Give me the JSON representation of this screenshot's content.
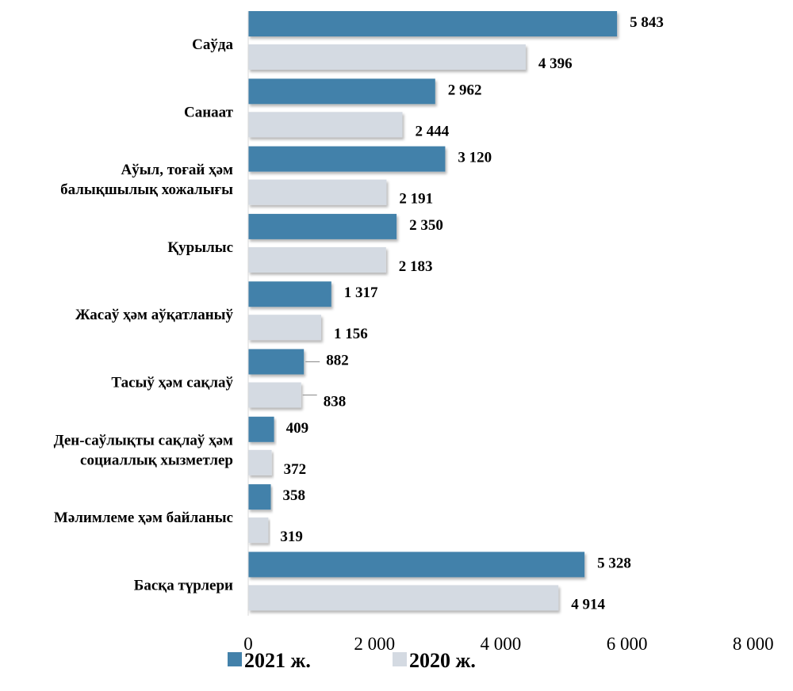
{
  "chart_data": {
    "type": "bar",
    "orientation": "horizontal",
    "categories": [
      [
        "Саўда"
      ],
      [
        "Санаат"
      ],
      [
        "Аўыл, тоғай ҳәм",
        "балықшылық хожалығы"
      ],
      [
        "Қурылыс"
      ],
      [
        "Жасаў ҳәм аўқатланыў"
      ],
      [
        "Тасыў ҳәм сақлаў"
      ],
      [
        "Ден-саўлықты сақлаў ҳәм",
        "социаллық хызметлер"
      ],
      [
        "Мәлимлеме ҳәм байланыс"
      ],
      [
        "Басқа түрлери"
      ]
    ],
    "series": [
      {
        "name": "2021 ж.",
        "color": "#4381aa",
        "values": [
          5843,
          2962,
          3120,
          2350,
          1317,
          882,
          409,
          358,
          5328
        ],
        "labels": [
          "5 843",
          "2 962",
          "3 120",
          "2 350",
          "1 317",
          "882",
          "409",
          "358",
          "5 328"
        ]
      },
      {
        "name": "2020 ж.",
        "color": "#d4dae2",
        "values": [
          4396,
          2444,
          2191,
          2183,
          1156,
          838,
          372,
          319,
          4914
        ],
        "labels": [
          "4 396",
          "2 444",
          "2 191",
          "2 183",
          "1 156",
          "838",
          "372",
          "319",
          "4 914"
        ]
      }
    ],
    "xlim": [
      0,
      8000
    ],
    "xticks": [
      0,
      2000,
      4000,
      6000,
      8000
    ],
    "xtick_labels": [
      "0",
      "2 000",
      "4 000",
      "6 000",
      "8 000"
    ],
    "grid": false,
    "legend_position": "bottom"
  }
}
